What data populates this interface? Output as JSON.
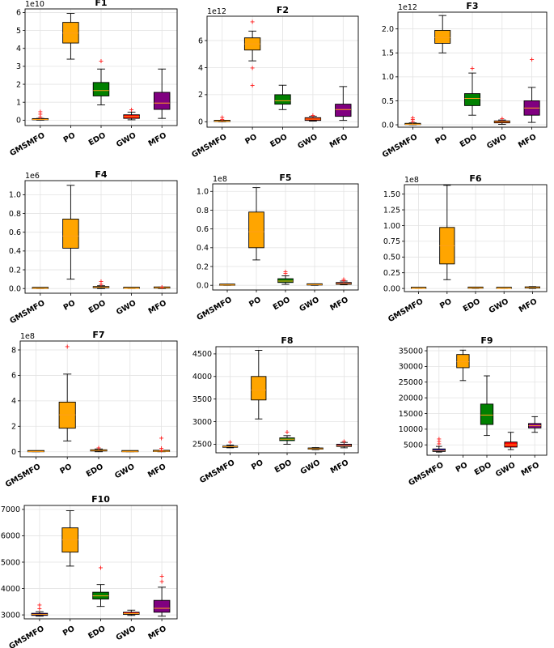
{
  "chart_data": [
    {
      "type": "boxplot",
      "title": "F1",
      "multiplier": "1e10",
      "categories": [
        "GMSMFO",
        "PO",
        "EDO",
        "GWO",
        "MFO"
      ],
      "colors": [
        "#ffa500",
        "#ffa500",
        "#008000",
        "#ff0000",
        "#800080"
      ],
      "ylim": [
        -0.3,
        6.2
      ],
      "yticks": [
        0,
        1,
        2,
        3,
        4,
        5,
        6
      ],
      "yticklabels": [
        "0",
        "1",
        "2",
        "3",
        "4",
        "5",
        "6"
      ],
      "boxes": [
        {
          "whislo": 0,
          "q1": 0.02,
          "med": 0.04,
          "q3": 0.07,
          "whishi": 0.1,
          "fliers": [
            0.2,
            0.35,
            0.5
          ]
        },
        {
          "whislo": 3.4,
          "q1": 4.3,
          "med": 4.85,
          "q3": 5.45,
          "whishi": 5.95,
          "fliers": []
        },
        {
          "whislo": 0.85,
          "q1": 1.35,
          "med": 1.65,
          "q3": 2.1,
          "whishi": 2.85,
          "fliers": [
            3.3
          ]
        },
        {
          "whislo": 0.02,
          "q1": 0.1,
          "med": 0.2,
          "q3": 0.3,
          "whishi": 0.45,
          "fliers": [
            0.6
          ]
        },
        {
          "whislo": 0.1,
          "q1": 0.6,
          "med": 0.95,
          "q3": 1.55,
          "whishi": 2.85,
          "fliers": []
        }
      ]
    },
    {
      "type": "boxplot",
      "title": "F2",
      "multiplier": "1e12",
      "categories": [
        "GMSMFO",
        "PO",
        "EDO",
        "GWO",
        "MFO"
      ],
      "colors": [
        "#ffa500",
        "#ffa500",
        "#008000",
        "#ff0000",
        "#800080"
      ],
      "ylim": [
        -0.4,
        7.8
      ],
      "yticks": [
        0,
        2,
        4,
        6
      ],
      "yticklabels": [
        "0",
        "2",
        "4",
        "6"
      ],
      "boxes": [
        {
          "whislo": 0,
          "q1": 0.02,
          "med": 0.04,
          "q3": 0.06,
          "whishi": 0.1,
          "fliers": [
            0.2,
            0.35
          ]
        },
        {
          "whislo": 4.5,
          "q1": 5.3,
          "med": 5.75,
          "q3": 6.2,
          "whishi": 6.7,
          "fliers": [
            2.7,
            4.0,
            7.4
          ]
        },
        {
          "whislo": 0.9,
          "q1": 1.3,
          "med": 1.55,
          "q3": 2.0,
          "whishi": 2.7,
          "fliers": []
        },
        {
          "whislo": 0.05,
          "q1": 0.1,
          "med": 0.2,
          "q3": 0.3,
          "whishi": 0.4,
          "fliers": [
            0.5
          ]
        },
        {
          "whislo": 0.1,
          "q1": 0.4,
          "med": 0.9,
          "q3": 1.3,
          "whishi": 2.6,
          "fliers": []
        }
      ]
    },
    {
      "type": "boxplot",
      "title": "F3",
      "multiplier": "1e12",
      "categories": [
        "GMSMFO",
        "PO",
        "EDO",
        "GWO",
        "MFO"
      ],
      "colors": [
        "#ffa500",
        "#ffa500",
        "#008000",
        "#ff0000",
        "#800080"
      ],
      "ylim": [
        -0.05,
        2.35
      ],
      "yticks": [
        0,
        0.5,
        1.0,
        1.5,
        2.0
      ],
      "yticklabels": [
        "0.0",
        "0.5",
        "1.0",
        "1.5",
        "2.0"
      ],
      "boxes": [
        {
          "whislo": 0,
          "q1": 0.005,
          "med": 0.01,
          "q3": 0.02,
          "whishi": 0.04,
          "fliers": [
            0.08,
            0.12,
            0.15
          ]
        },
        {
          "whislo": 1.5,
          "q1": 1.7,
          "med": 1.82,
          "q3": 1.97,
          "whishi": 2.28,
          "fliers": []
        },
        {
          "whislo": 0.2,
          "q1": 0.4,
          "med": 0.55,
          "q3": 0.65,
          "whishi": 1.08,
          "fliers": [
            1.18
          ]
        },
        {
          "whislo": 0.01,
          "q1": 0.04,
          "med": 0.06,
          "q3": 0.08,
          "whishi": 0.1,
          "fliers": [
            0.14
          ]
        },
        {
          "whislo": 0.05,
          "q1": 0.2,
          "med": 0.35,
          "q3": 0.5,
          "whishi": 0.78,
          "fliers": [
            1.37
          ]
        }
      ]
    },
    {
      "type": "boxplot",
      "title": "F4",
      "multiplier": "1e6",
      "categories": [
        "GMSMFO",
        "PO",
        "EDO",
        "GWO",
        "MFO"
      ],
      "colors": [
        "#ffa500",
        "#ffa500",
        "#ff8c00",
        "#ffa500",
        "#ffa500"
      ],
      "ylim": [
        -0.05,
        1.15
      ],
      "yticks": [
        0,
        0.2,
        0.4,
        0.6,
        0.8,
        1.0
      ],
      "yticklabels": [
        "0.0",
        "0.2",
        "0.4",
        "0.6",
        "0.8",
        "1.0"
      ],
      "boxes": [
        {
          "whislo": 0,
          "q1": 0,
          "med": 0.002,
          "q3": 0.004,
          "whishi": 0.006,
          "fliers": []
        },
        {
          "whislo": 0.1,
          "q1": 0.43,
          "med": 0.56,
          "q3": 0.74,
          "whishi": 1.1,
          "fliers": []
        },
        {
          "whislo": 0,
          "q1": 0.008,
          "med": 0.015,
          "q3": 0.022,
          "whishi": 0.03,
          "fliers": [
            0.05,
            0.08
          ]
        },
        {
          "whislo": 0,
          "q1": 0.001,
          "med": 0.002,
          "q3": 0.003,
          "whishi": 0.005,
          "fliers": []
        },
        {
          "whislo": 0,
          "q1": 0.004,
          "med": 0.008,
          "q3": 0.012,
          "whishi": 0.016,
          "fliers": [
            0.02
          ]
        }
      ]
    },
    {
      "type": "boxplot",
      "title": "F5",
      "multiplier": "1e8",
      "categories": [
        "GMSMFO",
        "PO",
        "EDO",
        "GWO",
        "MFO"
      ],
      "colors": [
        "#ffa500",
        "#ffa500",
        "#008000",
        "#ffa500",
        "#800080"
      ],
      "ylim": [
        -0.05,
        1.08
      ],
      "yticks": [
        0,
        0.2,
        0.4,
        0.6,
        0.8,
        1.0
      ],
      "yticklabels": [
        "0.0",
        "0.2",
        "0.4",
        "0.6",
        "0.8",
        "1.0"
      ],
      "boxes": [
        {
          "whislo": 0,
          "q1": 0,
          "med": 0.003,
          "q3": 0.006,
          "whishi": 0.01,
          "fliers": []
        },
        {
          "whislo": 0.27,
          "q1": 0.4,
          "med": 0.57,
          "q3": 0.78,
          "whishi": 1.04,
          "fliers": []
        },
        {
          "whislo": 0.01,
          "q1": 0.03,
          "med": 0.045,
          "q3": 0.07,
          "whishi": 0.1,
          "fliers": [
            0.13,
            0.15
          ]
        },
        {
          "whislo": 0,
          "q1": 0.003,
          "med": 0.006,
          "q3": 0.01,
          "whishi": 0.014,
          "fliers": []
        },
        {
          "whislo": 0.005,
          "q1": 0.01,
          "med": 0.018,
          "q3": 0.03,
          "whishi": 0.045,
          "fliers": [
            0.055,
            0.065
          ]
        }
      ]
    },
    {
      "type": "boxplot",
      "title": "F6",
      "multiplier": "1e8",
      "categories": [
        "GMSMFO",
        "PO",
        "EDO",
        "GWO",
        "MFO"
      ],
      "colors": [
        "#ffa500",
        "#ffa500",
        "#ffa500",
        "#ffa500",
        "#ffa500"
      ],
      "ylim": [
        -0.05,
        1.65
      ],
      "yticks": [
        0,
        0.25,
        0.5,
        0.75,
        1.0,
        1.25,
        1.5
      ],
      "yticklabels": [
        "0.00",
        "0.25",
        "0.50",
        "0.75",
        "1.00",
        "1.25",
        "1.50"
      ],
      "boxes": [
        {
          "whislo": 0,
          "q1": 0,
          "med": 0.002,
          "q3": 0.004,
          "whishi": 0.006,
          "fliers": []
        },
        {
          "whislo": 0.14,
          "q1": 0.39,
          "med": 0.68,
          "q3": 0.97,
          "whishi": 1.64,
          "fliers": []
        },
        {
          "whislo": 0,
          "q1": 0.003,
          "med": 0.007,
          "q3": 0.011,
          "whishi": 0.016,
          "fliers": []
        },
        {
          "whislo": 0,
          "q1": 0,
          "med": 0.002,
          "q3": 0.004,
          "whishi": 0.006,
          "fliers": []
        },
        {
          "whislo": 0,
          "q1": 0.006,
          "med": 0.012,
          "q3": 0.018,
          "whishi": 0.03,
          "fliers": []
        }
      ]
    },
    {
      "type": "boxplot",
      "title": "F7",
      "multiplier": "1e8",
      "categories": [
        "GMSMFO",
        "PO",
        "EDO",
        "GWO",
        "MFO"
      ],
      "colors": [
        "#ffa500",
        "#ffa500",
        "#ff8c00",
        "#ffa500",
        "#ffa500"
      ],
      "ylim": [
        -0.4,
        8.7
      ],
      "yticks": [
        0,
        2,
        4,
        6,
        8
      ],
      "yticklabels": [
        "0",
        "2",
        "4",
        "6",
        "8"
      ],
      "boxes": [
        {
          "whislo": 0,
          "q1": 0,
          "med": 0.01,
          "q3": 0.02,
          "whishi": 0.03,
          "fliers": []
        },
        {
          "whislo": 0.85,
          "q1": 1.85,
          "med": 2.9,
          "q3": 3.9,
          "whishi": 6.1,
          "fliers": [
            8.3
          ]
        },
        {
          "whislo": 0,
          "q1": 0.06,
          "med": 0.1,
          "q3": 0.15,
          "whishi": 0.22,
          "fliers": [
            0.32
          ]
        },
        {
          "whislo": 0,
          "q1": 0,
          "med": 0.005,
          "q3": 0.01,
          "whishi": 0.02,
          "fliers": []
        },
        {
          "whislo": 0,
          "q1": 0.02,
          "med": 0.04,
          "q3": 0.06,
          "whishi": 0.1,
          "fliers": [
            0.15,
            0.3,
            1.1
          ]
        }
      ]
    },
    {
      "type": "boxplot",
      "title": "F8",
      "multiplier": "",
      "categories": [
        "GMSMFO",
        "PO",
        "EDO",
        "GWO",
        "MFO"
      ],
      "colors": [
        "#4b0082",
        "#ffa500",
        "#008000",
        "#ff0000",
        "#800080"
      ],
      "ylim": [
        2310,
        4660
      ],
      "yticks": [
        2500,
        3000,
        3500,
        4000,
        4500
      ],
      "yticklabels": [
        "2500",
        "3000",
        "3500",
        "4000",
        "4500"
      ],
      "boxes": [
        {
          "whislo": 2420,
          "q1": 2432,
          "med": 2445,
          "q3": 2458,
          "whishi": 2480,
          "fliers": [
            2550
          ]
        },
        {
          "whislo": 3060,
          "q1": 3480,
          "med": 3700,
          "q3": 4000,
          "whishi": 4580,
          "fliers": []
        },
        {
          "whislo": 2500,
          "q1": 2580,
          "med": 2610,
          "q3": 2640,
          "whishi": 2690,
          "fliers": [
            2780
          ]
        },
        {
          "whislo": 2380,
          "q1": 2390,
          "med": 2400,
          "q3": 2410,
          "whishi": 2425,
          "fliers": []
        },
        {
          "whislo": 2420,
          "q1": 2450,
          "med": 2470,
          "q3": 2500,
          "whishi": 2540,
          "fliers": [
            2570
          ]
        }
      ]
    },
    {
      "type": "boxplot",
      "title": "F9",
      "multiplier": "",
      "categories": [
        "GMSMFO",
        "PO",
        "EDO",
        "GWO",
        "MFO"
      ],
      "colors": [
        "#0000cd",
        "#ffa500",
        "#008000",
        "#ff0000",
        "#800080"
      ],
      "ylim": [
        1700,
        36300
      ],
      "yticks": [
        5000,
        10000,
        15000,
        20000,
        25000,
        30000,
        35000
      ],
      "yticklabels": [
        "5000",
        "10000",
        "15000",
        "20000",
        "25000",
        "30000",
        "35000"
      ],
      "boxes": [
        {
          "whislo": 2700,
          "q1": 2900,
          "med": 3200,
          "q3": 3700,
          "whishi": 4500,
          "fliers": [
            5500,
            6200,
            7000
          ]
        },
        {
          "whislo": 25500,
          "q1": 29600,
          "med": 31500,
          "q3": 33800,
          "whishi": 35200,
          "fliers": []
        },
        {
          "whislo": 8000,
          "q1": 11500,
          "med": 14500,
          "q3": 18000,
          "whishi": 27000,
          "fliers": []
        },
        {
          "whislo": 3500,
          "q1": 4300,
          "med": 5000,
          "q3": 5900,
          "whishi": 9000,
          "fliers": []
        },
        {
          "whislo": 9000,
          "q1": 10400,
          "med": 11100,
          "q3": 11800,
          "whishi": 14000,
          "fliers": []
        }
      ]
    },
    {
      "type": "boxplot",
      "title": "F10",
      "multiplier": "",
      "categories": [
        "GMSMFO",
        "PO",
        "EDO",
        "GWO",
        "MFO"
      ],
      "colors": [
        "#4b0082",
        "#ffa500",
        "#008000",
        "#ff0000",
        "#800080"
      ],
      "ylim": [
        2850,
        7150
      ],
      "yticks": [
        3000,
        4000,
        5000,
        6000,
        7000
      ],
      "yticklabels": [
        "3000",
        "4000",
        "5000",
        "6000",
        "7000"
      ],
      "boxes": [
        {
          "whislo": 2950,
          "q1": 2980,
          "med": 3020,
          "q3": 3060,
          "whishi": 3120,
          "fliers": [
            3250,
            3380
          ]
        },
        {
          "whislo": 4850,
          "q1": 5380,
          "med": 5850,
          "q3": 6300,
          "whishi": 6950,
          "fliers": []
        },
        {
          "whislo": 3320,
          "q1": 3600,
          "med": 3720,
          "q3": 3860,
          "whishi": 4150,
          "fliers": [
            4800
          ]
        },
        {
          "whislo": 2980,
          "q1": 3020,
          "med": 3050,
          "q3": 3100,
          "whishi": 3180,
          "fliers": []
        },
        {
          "whislo": 2950,
          "q1": 3100,
          "med": 3250,
          "q3": 3550,
          "whishi": 4050,
          "fliers": [
            4280,
            4480
          ]
        }
      ]
    }
  ]
}
